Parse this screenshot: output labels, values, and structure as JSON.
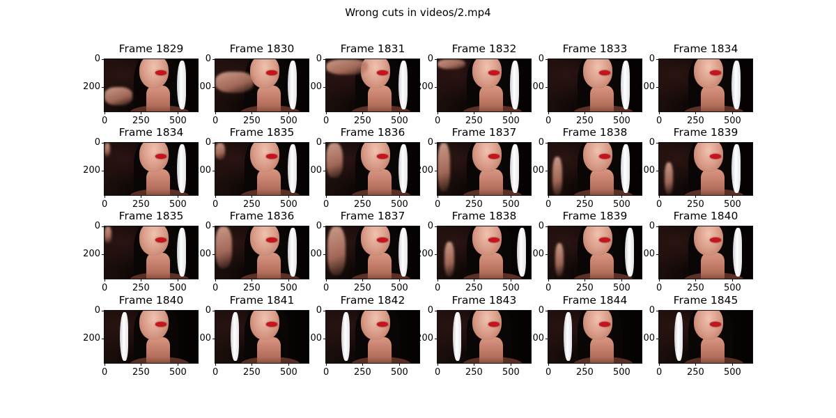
{
  "figure": {
    "suptitle": "Wrong cuts in videos/2.mp4"
  },
  "axes": {
    "xticks": [
      "0",
      "250",
      "500"
    ],
    "yticks": [
      "0",
      "200"
    ]
  },
  "rows": [
    {
      "frames": [
        "Frame 1829",
        "Frame 1830",
        "Frame 1831",
        "Frame 1832",
        "Frame 1833",
        "Frame 1834"
      ]
    },
    {
      "frames": [
        "Frame 1834",
        "Frame 1835",
        "Frame 1836",
        "Frame 1837",
        "Frame 1838",
        "Frame 1839"
      ]
    },
    {
      "frames": [
        "Frame 1835",
        "Frame 1836",
        "Frame 1837",
        "Frame 1838",
        "Frame 1839",
        "Frame 1840"
      ]
    },
    {
      "frames": [
        "Frame 1840",
        "Frame 1841",
        "Frame 1842",
        "Frame 1843",
        "Frame 1844",
        "Frame 1845"
      ]
    }
  ],
  "colors": {
    "background": "#ffffff",
    "lips": "#c5141c",
    "skin": "#d79a86"
  }
}
